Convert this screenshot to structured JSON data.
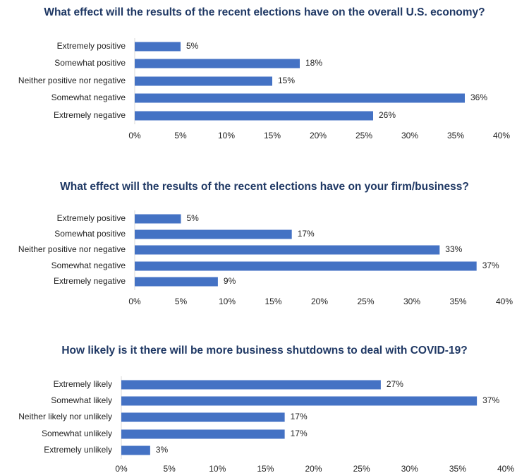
{
  "chart_data": [
    {
      "type": "bar",
      "orientation": "horizontal",
      "title": "What effect will the results of the recent elections have on the overall U.S. economy?",
      "categories": [
        "Extremely positive",
        "Somewhat positive",
        "Neither positive nor negative",
        "Somewhat negative",
        "Extremely negative"
      ],
      "values": [
        5,
        18,
        15,
        36,
        26
      ],
      "value_labels": [
        "5%",
        "18%",
        "15%",
        "36%",
        "26%"
      ],
      "color": "#4472c4",
      "xlim": [
        0,
        40
      ],
      "xticks": [
        {
          "value": 0,
          "label": "0%"
        },
        {
          "value": 5,
          "label": "5%"
        },
        {
          "value": 10,
          "label": "10%"
        },
        {
          "value": 15,
          "label": "15%"
        },
        {
          "value": 20,
          "label": "20%"
        },
        {
          "value": 25,
          "label": "25%"
        },
        {
          "value": 30,
          "label": "30%"
        },
        {
          "value": 35,
          "label": "35%"
        },
        {
          "value": 40,
          "label": "40%"
        }
      ]
    },
    {
      "type": "bar",
      "orientation": "horizontal",
      "title": "What effect will the results of the recent elections have on your firm/business?",
      "categories": [
        "Extremely positive",
        "Somewhat positive",
        "Neither positive nor negative",
        "Somewhat negative",
        "Extremely negative"
      ],
      "values": [
        5,
        17,
        33,
        37,
        9
      ],
      "value_labels": [
        "5%",
        "17%",
        "33%",
        "37%",
        "9%"
      ],
      "color": "#4472c4",
      "xlim": [
        0,
        40
      ],
      "xticks": [
        {
          "value": 0,
          "label": "0%"
        },
        {
          "value": 5,
          "label": "5%"
        },
        {
          "value": 10,
          "label": "10%"
        },
        {
          "value": 15,
          "label": "15%"
        },
        {
          "value": 20,
          "label": "20%"
        },
        {
          "value": 25,
          "label": "25%"
        },
        {
          "value": 30,
          "label": "30%"
        },
        {
          "value": 35,
          "label": "35%"
        },
        {
          "value": 40,
          "label": "40%"
        }
      ]
    },
    {
      "type": "bar",
      "orientation": "horizontal",
      "title": "How likely is it there will be more business shutdowns to deal with COVID-19?",
      "categories": [
        "Extremely likely",
        "Somewhat likely",
        "Neither likely nor unlikely",
        "Somewhat unlikely",
        "Extremely unlikely"
      ],
      "values": [
        27,
        37,
        17,
        17,
        3
      ],
      "value_labels": [
        "27%",
        "37%",
        "17%",
        "17%",
        "3%"
      ],
      "color": "#4472c4",
      "xlim": [
        0,
        40
      ],
      "xticks": [
        {
          "value": 0,
          "label": "0%"
        },
        {
          "value": 5,
          "label": "5%"
        },
        {
          "value": 10,
          "label": "10%"
        },
        {
          "value": 15,
          "label": "15%"
        },
        {
          "value": 20,
          "label": "20%"
        },
        {
          "value": 25,
          "label": "25%"
        },
        {
          "value": 30,
          "label": "30%"
        },
        {
          "value": 35,
          "label": "35%"
        },
        {
          "value": 40,
          "label": "40%"
        }
      ]
    }
  ]
}
